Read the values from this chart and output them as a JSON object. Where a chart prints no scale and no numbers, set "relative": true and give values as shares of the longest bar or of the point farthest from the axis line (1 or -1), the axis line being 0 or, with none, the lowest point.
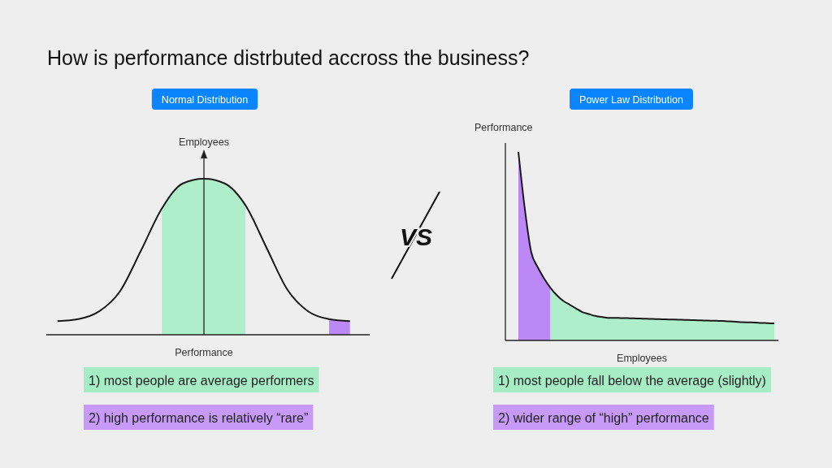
{
  "chart_data": [
    {
      "type": "other",
      "title": "How is performance distrbuted accross the business?",
      "annotations": [
        "VS"
      ]
    },
    {
      "type": "line",
      "title": "Normal Distribution",
      "xlabel": "Performance",
      "ylabel": "Employees",
      "relative": true,
      "categories": [
        null,
        null,
        null,
        null,
        null,
        null,
        null,
        null,
        null,
        null,
        null,
        null,
        null,
        null,
        null
      ],
      "series": [
        {
          "type": "area",
          "color": "#a6edc6",
          "values": [
            null,
            null,
            null,
            null,
            null,
            0.81,
            0.97,
            1,
            0.97,
            0.83,
            null,
            null,
            null,
            null,
            null
          ]
        },
        {
          "type": "area",
          "color": "#b67cf6",
          "values": [
            null,
            null,
            null,
            null,
            null,
            null,
            null,
            null,
            null,
            null,
            null,
            null,
            null,
            0.1,
            0.087
          ]
        },
        {
          "type": "line",
          "color": "#1a1a1a",
          "values": [
            0.087,
            0.1,
            0.15,
            0.28,
            0.54,
            0.81,
            0.97,
            1,
            0.97,
            0.83,
            0.56,
            0.29,
            0.15,
            0.1,
            0.087
          ]
        }
      ],
      "annotations": [
        "1) most people are average performers",
        "2) high performance is relatively “rare”"
      ]
    },
    {
      "type": "line",
      "title": "Power Law Distribution",
      "xlabel": "Employees",
      "ylabel": "Performance",
      "relative": true,
      "categories": [
        null,
        null,
        null,
        null,
        null,
        null,
        null,
        null,
        null,
        null,
        null,
        null,
        null,
        null,
        null,
        null,
        null,
        null,
        null,
        null,
        null,
        null,
        null,
        null,
        null,
        null,
        null,
        null,
        null,
        null,
        null,
        null,
        null,
        null,
        null,
        null,
        null,
        null,
        null,
        null,
        null
      ],
      "series": [
        {
          "type": "area",
          "color": "#b67cf6",
          "values": [
            1,
            0.7,
            0.47,
            0.39,
            0.33,
            0.28,
            null,
            null,
            null,
            null,
            null,
            null,
            null,
            null,
            null,
            null,
            null,
            null,
            null,
            null,
            null,
            null,
            null,
            null,
            null,
            null,
            null,
            null,
            null,
            null,
            null,
            null,
            null,
            null,
            null,
            null,
            null,
            null,
            null,
            null,
            null
          ]
        },
        {
          "type": "area",
          "color": "#a6edc6",
          "values": [
            null,
            null,
            null,
            null,
            null,
            0.28,
            0.24,
            0.21,
            0.19,
            0.17,
            0.15,
            0.14,
            0.13,
            0.125,
            0.12,
            0.12,
            0.119,
            0.118,
            0.117,
            0.116,
            0.115,
            0.114,
            0.113,
            0.112,
            0.111,
            0.11,
            0.109,
            0.108,
            0.107,
            0.106,
            0.105,
            0.104,
            0.103,
            0.101,
            0.099,
            0.097,
            0.096,
            0.095,
            0.093,
            0.092,
            0.09
          ]
        },
        {
          "type": "line",
          "color": "#1a1a1a",
          "values": [
            1,
            0.7,
            0.47,
            0.39,
            0.33,
            0.28,
            0.24,
            0.21,
            0.19,
            0.17,
            0.15,
            0.14,
            0.13,
            0.125,
            0.12,
            0.12,
            0.119,
            0.118,
            0.117,
            0.116,
            0.115,
            0.114,
            0.113,
            0.112,
            0.111,
            0.11,
            0.109,
            0.108,
            0.107,
            0.106,
            0.105,
            0.104,
            0.103,
            0.101,
            0.099,
            0.097,
            0.096,
            0.095,
            0.093,
            0.092,
            0.09
          ]
        }
      ],
      "annotations": [
        "1) most people fall below the average (slightly)",
        "2) wider range of “high” performance"
      ]
    }
  ]
}
